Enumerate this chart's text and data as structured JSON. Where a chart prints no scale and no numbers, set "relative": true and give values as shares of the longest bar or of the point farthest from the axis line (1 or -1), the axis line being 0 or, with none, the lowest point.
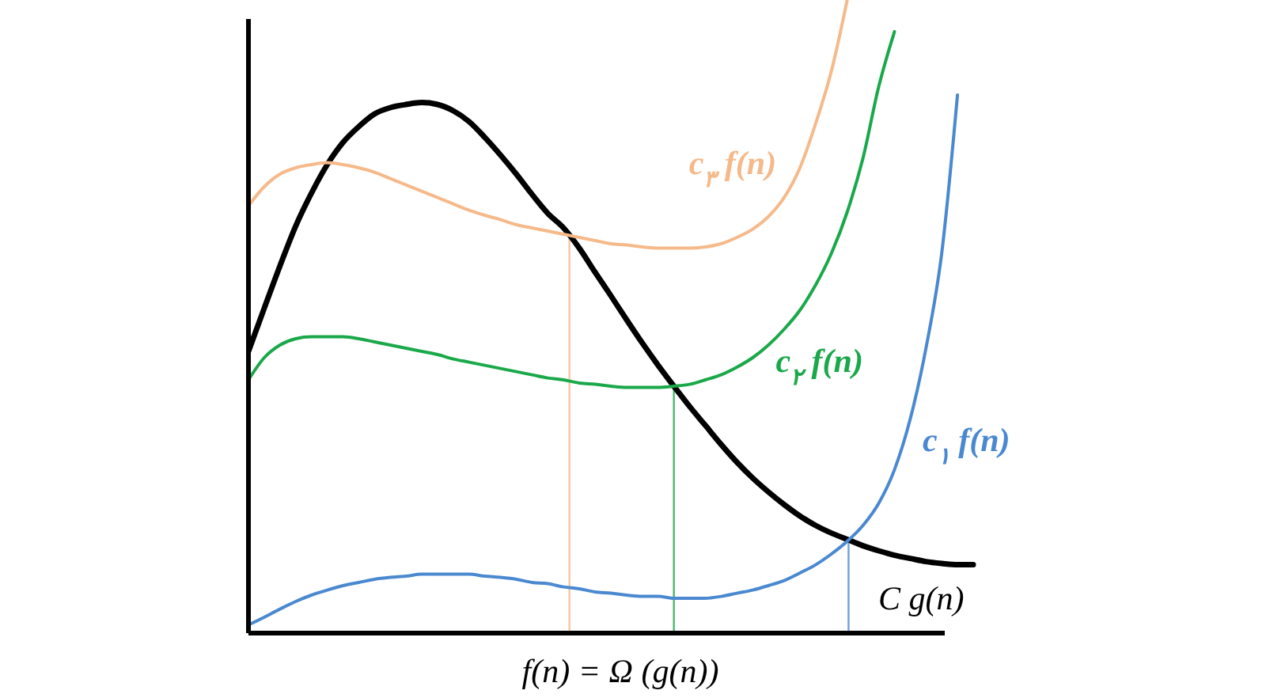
{
  "chart_data": {
    "type": "line",
    "relative": true,
    "xlabel": "f(n) = Ω (g(n))",
    "grid": false,
    "legend": false,
    "marker": "none",
    "line_style": "solid",
    "categories": [
      null,
      null,
      null,
      null,
      null,
      null,
      null,
      null,
      null,
      null,
      null,
      null,
      null,
      null,
      null,
      null,
      null,
      null,
      null,
      null,
      null,
      null,
      null,
      null,
      null,
      null,
      null,
      null,
      null,
      null,
      null,
      null,
      null,
      null,
      null,
      null,
      null,
      null,
      null,
      null,
      null,
      null,
      null,
      null,
      null,
      null,
      null
    ],
    "series": [
      {
        "name": "C g(n)",
        "color": "#000000",
        "values": [
          0.445,
          0.513,
          0.58,
          0.643,
          0.695,
          0.74,
          0.775,
          0.8,
          0.82,
          0.83,
          0.835,
          0.838,
          0.835,
          0.825,
          0.808,
          0.783,
          0.755,
          0.725,
          0.693,
          0.663,
          0.64,
          0.608,
          0.57,
          0.533,
          0.495,
          0.458,
          0.423,
          0.39,
          0.358,
          0.328,
          0.298,
          0.27,
          0.245,
          0.223,
          0.203,
          0.185,
          0.17,
          0.158,
          0.148,
          0.138,
          0.13,
          0.123,
          0.118,
          0.113,
          0.11,
          0.108,
          0.108
        ]
      },
      {
        "name": "c$_{۳}$f(n)",
        "color": "#f5b98a",
        "values": [
          0.675,
          0.705,
          0.725,
          0.735,
          0.74,
          0.743,
          0.74,
          0.735,
          0.728,
          0.718,
          0.708,
          0.698,
          0.688,
          0.678,
          0.668,
          0.66,
          0.653,
          0.645,
          0.64,
          0.635,
          0.63,
          0.625,
          0.62,
          0.615,
          0.613,
          0.61,
          0.608,
          0.608,
          0.608,
          0.61,
          0.615,
          0.625,
          0.638,
          0.658,
          0.688,
          0.735,
          0.805,
          0.888,
          1.0,
          null,
          null,
          null,
          null,
          null,
          null,
          null,
          null
        ]
      },
      {
        "name": "c$_{۲}$f(n)",
        "color": "#1aa84a",
        "values": [
          0.4,
          0.435,
          0.455,
          0.465,
          0.468,
          0.468,
          0.468,
          0.465,
          0.46,
          0.455,
          0.45,
          0.445,
          0.44,
          0.433,
          0.428,
          0.423,
          0.418,
          0.413,
          0.408,
          0.403,
          0.4,
          0.395,
          0.393,
          0.39,
          0.388,
          0.388,
          0.388,
          0.39,
          0.393,
          0.4,
          0.408,
          0.42,
          0.435,
          0.455,
          0.48,
          0.51,
          0.55,
          0.6,
          0.665,
          0.75,
          0.863,
          0.95,
          null,
          null,
          null,
          null,
          null
        ]
      },
      {
        "name": "c$_{۱}$f(n)",
        "color": "#4a88d0",
        "values": [
          0.013,
          0.025,
          0.038,
          0.05,
          0.06,
          0.068,
          0.075,
          0.08,
          0.085,
          0.088,
          0.09,
          0.093,
          0.093,
          0.093,
          0.093,
          0.09,
          0.088,
          0.085,
          0.08,
          0.078,
          0.073,
          0.07,
          0.065,
          0.063,
          0.06,
          0.058,
          0.058,
          0.055,
          0.055,
          0.055,
          0.058,
          0.063,
          0.068,
          0.075,
          0.083,
          0.095,
          0.108,
          0.125,
          0.145,
          0.17,
          0.205,
          0.258,
          0.338,
          0.45,
          0.6,
          0.85,
          null
        ]
      }
    ]
  }
}
